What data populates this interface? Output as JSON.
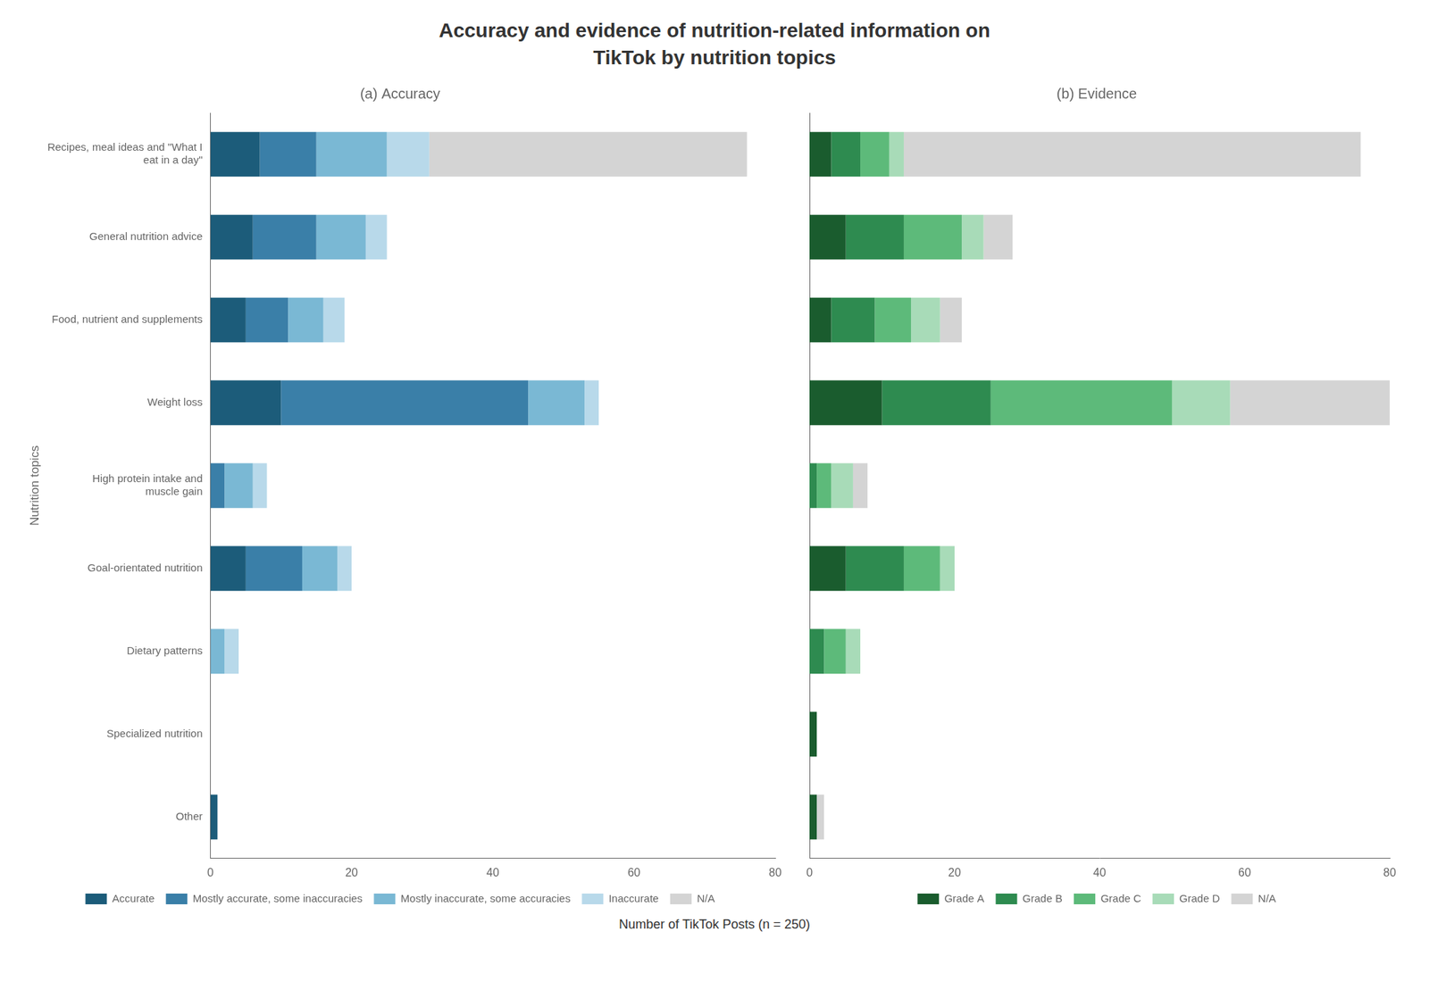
{
  "title": "Accuracy and evidence of nutrition-related information on\nTikTok by nutrition topics",
  "xlabel": "Number of TikTok Posts (n = 250)",
  "chart_data": [
    {
      "type": "bar",
      "orientation": "horizontal",
      "stacked": true,
      "title": "(a) Accuracy",
      "ylabel": "Nutrition topics",
      "categories": [
        "Recipes, meal ideas and \"What I\neat in a day\"",
        "General nutrition advice",
        "Food, nutrient and supplements",
        "Weight loss",
        "High protein intake and\nmuscle gain",
        "Goal-orientated nutrition",
        "Dietary patterns",
        "Specialized nutrition",
        "Other"
      ],
      "series": [
        {
          "name": "Accurate",
          "color": "#1c5c7a",
          "values": [
            7,
            6,
            5,
            10,
            0,
            5,
            0,
            0,
            1
          ]
        },
        {
          "name": "Mostly accurate, some inaccuracies",
          "color": "#3a7fa8",
          "values": [
            8,
            9,
            6,
            35,
            2,
            8,
            0,
            0,
            0
          ]
        },
        {
          "name": "Mostly inaccurate, some accuracies",
          "color": "#7ab8d4",
          "values": [
            10,
            7,
            5,
            8,
            4,
            5,
            2,
            0,
            0
          ]
        },
        {
          "name": "Inaccurate",
          "color": "#b8d9ea",
          "values": [
            6,
            3,
            3,
            2,
            2,
            2,
            2,
            0,
            0
          ]
        },
        {
          "name": "N/A",
          "color": "#d4d4d4",
          "values": [
            45,
            0,
            0,
            0,
            0,
            0,
            0,
            0,
            0
          ]
        }
      ],
      "xlim": [
        0,
        80
      ],
      "xticks": [
        0,
        20,
        40,
        60,
        80
      ],
      "grid": false,
      "legend": "bottom"
    },
    {
      "type": "bar",
      "orientation": "horizontal",
      "stacked": true,
      "title": "(b) Evidence",
      "categories": [
        "Recipes, meal ideas and \"What I\neat in a day\"",
        "General nutrition advice",
        "Food, nutrient and supplements",
        "Weight loss",
        "High protein intake and\nmuscle gain",
        "Goal-orientated nutrition",
        "Dietary patterns",
        "Specialized nutrition",
        "Other"
      ],
      "series": [
        {
          "name": "Grade A",
          "color": "#1a5c2e",
          "values": [
            3,
            5,
            3,
            10,
            0,
            5,
            0,
            1,
            1
          ]
        },
        {
          "name": "Grade B",
          "color": "#2e8b50",
          "values": [
            4,
            8,
            6,
            15,
            1,
            8,
            2,
            0,
            0
          ]
        },
        {
          "name": "Grade C",
          "color": "#5dba7a",
          "values": [
            4,
            8,
            5,
            25,
            2,
            5,
            3,
            0,
            0
          ]
        },
        {
          "name": "Grade D",
          "color": "#a8dbb8",
          "values": [
            2,
            3,
            4,
            8,
            3,
            2,
            2,
            0,
            0
          ]
        },
        {
          "name": "N/A",
          "color": "#d4d4d4",
          "values": [
            63,
            4,
            3,
            22,
            2,
            0,
            0,
            0,
            1
          ]
        }
      ],
      "xlim": [
        0,
        80
      ],
      "xticks": [
        0,
        20,
        40,
        60,
        80
      ],
      "grid": false,
      "legend": "bottom",
      "tick_labels": "x"
    }
  ]
}
